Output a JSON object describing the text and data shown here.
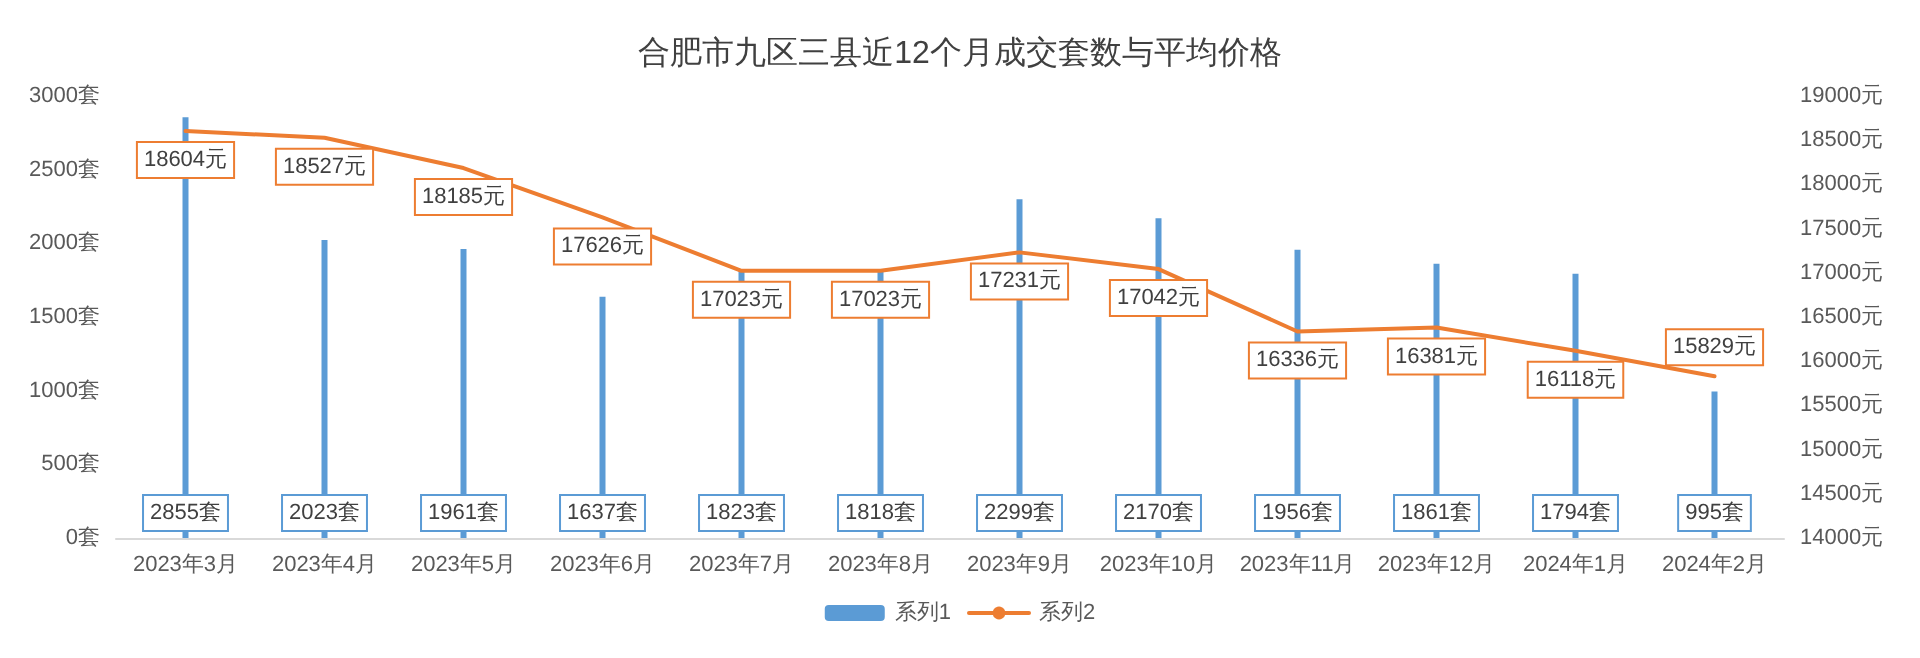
{
  "chart_data": {
    "type": "bar",
    "title": "合肥市九区三县近12个月成交套数与平均价格",
    "categories": [
      "2023年3月",
      "2023年4月",
      "2023年5月",
      "2023年6月",
      "2023年7月",
      "2023年8月",
      "2023年9月",
      "2023年10月",
      "2023年11月",
      "2023年12月",
      "2024年1月",
      "2024年2月"
    ],
    "series": [
      {
        "name": "系列1",
        "color": "#5b9bd5",
        "values": [
          2855,
          2023,
          1961,
          1637,
          1823,
          1818,
          2299,
          2170,
          1956,
          1861,
          1794,
          995
        ],
        "value_labels": [
          "2855套",
          "2023套",
          "1961套",
          "1637套",
          "1823套",
          "1818套",
          "2299套",
          "2170套",
          "1956套",
          "1861套",
          "1794套",
          "995套"
        ]
      },
      {
        "name": "系列2",
        "type": "line",
        "axis": "y2",
        "color": "#ed7d31",
        "values": [
          18604,
          18527,
          18185,
          17626,
          17023,
          17023,
          17231,
          17042,
          16336,
          16381,
          16118,
          15829
        ],
        "value_labels": [
          "18604元",
          "18527元",
          "18185元",
          "17626元",
          "17023元",
          "17023元",
          "17231元",
          "17042元",
          "16336元",
          "16381元",
          "16118元",
          "15829元"
        ]
      }
    ],
    "ylim": [
      0,
      3000
    ],
    "yticks": [
      {
        "value": 0,
        "label": "0套"
      },
      {
        "value": 500,
        "label": "500套"
      },
      {
        "value": 1000,
        "label": "1000套"
      },
      {
        "value": 1500,
        "label": "1500套"
      },
      {
        "value": 2000,
        "label": "2000套"
      },
      {
        "value": 2500,
        "label": "2500套"
      },
      {
        "value": 3000,
        "label": "3000套"
      }
    ],
    "y2lim": [
      14000,
      19000
    ],
    "y2ticks": [
      {
        "value": 14000,
        "label": "14000元"
      },
      {
        "value": 14500,
        "label": "14500元"
      },
      {
        "value": 15000,
        "label": "15000元"
      },
      {
        "value": 15500,
        "label": "15500元"
      },
      {
        "value": 16000,
        "label": "16000元"
      },
      {
        "value": 16500,
        "label": "16500元"
      },
      {
        "value": 17000,
        "label": "17000元"
      },
      {
        "value": 17500,
        "label": "17500元"
      },
      {
        "value": 18000,
        "label": "18000元"
      },
      {
        "value": 18500,
        "label": "18500元"
      },
      {
        "value": 19000,
        "label": "19000元"
      }
    ],
    "legend": "bottom",
    "line_style": "solid"
  }
}
